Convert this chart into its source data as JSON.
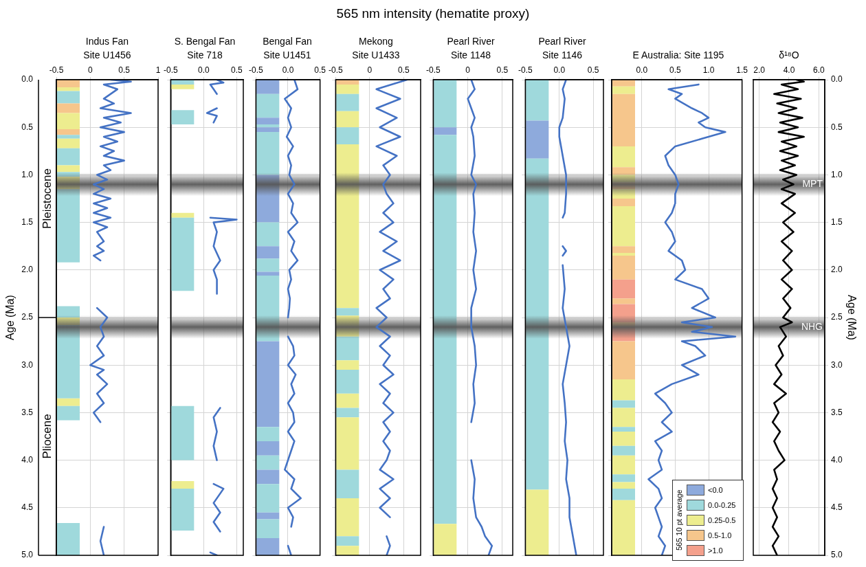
{
  "chart_data": [
    {
      "type": "other",
      "title": "565 nm intensity (hematite proxy)"
    },
    {
      "type": "line",
      "title": "Indus Fan\nSite U1456",
      "ylabel": "Age (Ma)",
      "xlim": [
        -0.5,
        1
      ],
      "xticks": [
        -0.5,
        0,
        0.5,
        1
      ],
      "ylim": [
        5,
        0
      ],
      "yticks": [
        {
          "value": 0,
          "label": "0.0"
        },
        0.5,
        {
          "value": 1,
          "label": "1.0"
        },
        1.5,
        {
          "value": 2,
          "label": "2.0"
        },
        2.5,
        {
          "value": 3,
          "label": "3.0"
        },
        3.5,
        {
          "value": 4,
          "label": "4.0"
        },
        4.5,
        {
          "value": 5,
          "label": "5.0"
        }
      ],
      "grid": true,
      "annotations": [
        "Pleistocene",
        "Pliocene"
      ],
      "series": [
        {
          "type": "line",
          "color": "#4472c4",
          "x": [
            0.3,
            0.6,
            0.2,
            0.4,
            0.2,
            0.35,
            0.15,
            0.6,
            0.2,
            0.45,
            0.15,
            0.5,
            0.2,
            0.4,
            0.15,
            0.35,
            0.2,
            0.5,
            0.2,
            0.3,
            0.1,
            0.25,
            0.05,
            0.2,
            0.05,
            0.3,
            0.05,
            0.25,
            0.05,
            0.3,
            0.05,
            0.25,
            0.1,
            0.2,
            0.1,
            0.2,
            0.05,
            0.15,
            null,
            0.1,
            0.25,
            0.15,
            0.2,
            0.1,
            0.2,
            0.0,
            0.2,
            0.1,
            0.25,
            0.1,
            0.2,
            0.05,
            0.15,
            null,
            0.2,
            0.15,
            0.2
          ],
          "values": [
            0,
            0.02,
            0.05,
            0.1,
            0.2,
            0.25,
            0.3,
            0.35,
            0.4,
            0.45,
            0.5,
            0.55,
            0.6,
            0.65,
            0.7,
            0.75,
            0.8,
            0.85,
            0.9,
            0.95,
            1.0,
            1.05,
            1.1,
            1.15,
            1.2,
            1.25,
            1.3,
            1.35,
            1.4,
            1.45,
            1.5,
            1.55,
            1.6,
            1.7,
            1.75,
            1.8,
            1.85,
            1.9,
            null,
            2.4,
            2.5,
            2.6,
            2.7,
            2.8,
            2.9,
            3.0,
            3.05,
            3.1,
            3.2,
            3.3,
            3.4,
            3.5,
            3.6,
            null,
            4.7,
            4.85,
            5.0
          ]
        }
      ],
      "bands": [
        {
          "axis": "y",
          "from": 0,
          "to": 0.08,
          "color": "#f6c68c"
        },
        {
          "axis": "y",
          "from": 0.08,
          "to": 0.12,
          "color": "#eded8f"
        },
        {
          "axis": "y",
          "from": 0.12,
          "to": 0.25,
          "color": "#9fd9dc"
        },
        {
          "axis": "y",
          "from": 0.25,
          "to": 0.35,
          "color": "#f6c68c"
        },
        {
          "axis": "y",
          "from": 0.35,
          "to": 0.52,
          "color": "#eded8f"
        },
        {
          "axis": "y",
          "from": 0.52,
          "to": 0.58,
          "color": "#f6c68c"
        },
        {
          "axis": "y",
          "from": 0.58,
          "to": 0.62,
          "color": "#9fd9dc"
        },
        {
          "axis": "y",
          "from": 0.62,
          "to": 0.72,
          "color": "#eded8f"
        },
        {
          "axis": "y",
          "from": 0.72,
          "to": 0.9,
          "color": "#9fd9dc"
        },
        {
          "axis": "y",
          "from": 0.9,
          "to": 0.97,
          "color": "#eded8f"
        },
        {
          "axis": "y",
          "from": 0.97,
          "to": 1.02,
          "color": "#9fd9dc"
        },
        {
          "axis": "y",
          "from": 1.02,
          "to": 1.15,
          "color": "#eded8f"
        },
        {
          "axis": "y",
          "from": 1.15,
          "to": 1.92,
          "color": "#9fd9dc"
        },
        {
          "axis": "y",
          "from": 2.38,
          "to": 2.5,
          "color": "#9fd9dc"
        },
        {
          "axis": "y",
          "from": 2.5,
          "to": 2.58,
          "color": "#eded8f"
        },
        {
          "axis": "y",
          "from": 2.58,
          "to": 3.35,
          "color": "#9fd9dc"
        },
        {
          "axis": "y",
          "from": 3.35,
          "to": 3.43,
          "color": "#eded8f"
        },
        {
          "axis": "y",
          "from": 3.43,
          "to": 3.58,
          "color": "#9fd9dc"
        },
        {
          "axis": "y",
          "from": 4.66,
          "to": 5.0,
          "color": "#9fd9dc"
        }
      ],
      "ref_lines": [
        {
          "axis": "y",
          "value": 1.1,
          "color": "#555555"
        },
        {
          "axis": "y",
          "value": 2.6,
          "color": "#555555"
        }
      ]
    },
    {
      "type": "line",
      "title": "S. Bengal Fan\nSite 718",
      "tick_labels": "x",
      "xlim": [
        -0.5,
        0.6
      ],
      "xticks": [
        -0.5,
        {
          "value": 0,
          "label": "0.0"
        },
        0.5
      ],
      "ylim": [
        5,
        0
      ],
      "yticks": [
        0,
        0.5,
        1,
        1.5,
        2,
        2.5,
        3,
        3.5,
        4,
        4.5,
        5
      ],
      "grid": true,
      "series": [
        {
          "type": "line",
          "color": "#4472c4",
          "x": [
            0.2,
            0.3,
            0.1,
            0.15,
            0.2,
            null,
            0.2,
            0.05,
            0.2,
            0.15,
            null,
            0.1,
            0.5,
            0.15,
            0.2,
            0.15,
            0.25,
            0.15,
            0.2,
            0.2,
            null,
            0.25,
            0.15,
            0.2,
            0.15,
            0.2,
            null,
            0.15,
            0.3,
            0.15,
            0.25,
            0.15,
            0.25,
            null,
            0.1,
            0.2
          ],
          "values": [
            0,
            0.03,
            0.05,
            0.1,
            0.15,
            null,
            0.3,
            0.35,
            0.38,
            0.45,
            null,
            1.45,
            1.47,
            1.5,
            1.6,
            1.75,
            1.9,
            2.0,
            2.1,
            2.25,
            null,
            3.45,
            3.55,
            3.7,
            3.85,
            4.0,
            null,
            4.25,
            4.3,
            4.45,
            4.55,
            4.65,
            4.75,
            null,
            4.97,
            5.0
          ]
        }
      ],
      "bands": [
        {
          "axis": "y",
          "from": 0,
          "to": 0.05,
          "color": "#9fd9dc"
        },
        {
          "axis": "y",
          "from": 0.05,
          "to": 0.1,
          "color": "#eded8f"
        },
        {
          "axis": "y",
          "from": 0.32,
          "to": 0.47,
          "color": "#9fd9dc"
        },
        {
          "axis": "y",
          "from": 1.4,
          "to": 1.45,
          "color": "#eded8f"
        },
        {
          "axis": "y",
          "from": 1.45,
          "to": 2.22,
          "color": "#9fd9dc"
        },
        {
          "axis": "y",
          "from": 3.43,
          "to": 4.0,
          "color": "#9fd9dc"
        },
        {
          "axis": "y",
          "from": 4.22,
          "to": 4.3,
          "color": "#eded8f"
        },
        {
          "axis": "y",
          "from": 4.3,
          "to": 4.74,
          "color": "#9fd9dc"
        }
      ],
      "ref_lines": [
        {
          "axis": "y",
          "value": 1.1,
          "color": "#555555"
        },
        {
          "axis": "y",
          "value": 2.6,
          "color": "#555555"
        }
      ]
    },
    {
      "type": "line",
      "title": "Bengal Fan\nSite U1451",
      "tick_labels": "x",
      "xlim": [
        -0.5,
        0.5
      ],
      "xticks": [
        -0.5,
        {
          "value": 0,
          "label": "0.0"
        },
        0.5
      ],
      "ylim": [
        5,
        0
      ],
      "yticks": [
        0,
        0.5,
        1,
        1.5,
        2,
        2.5,
        3,
        3.5,
        4,
        4.5,
        5
      ],
      "grid": true,
      "series": [
        {
          "type": "line",
          "color": "#4472c4",
          "x": [
            0.1,
            0.15,
            -0.05,
            0.05,
            0.0,
            0.05,
            -0.02,
            0.08,
            0.0,
            0.05,
            0.02,
            0.1,
            0.0,
            0.08,
            0.05,
            0.15,
            0.0,
            0.1,
            0.05,
            0.15,
            0.02,
            0.05,
            0.0,
            0.03,
            0.02,
            0.0,
            null,
            0.0,
            0.08,
            0.1,
            0.0,
            0.12,
            0.05,
            0.1,
            0.0,
            0.08,
            0.1,
            0.0,
            0.1,
            0.05,
            0.0,
            -0.05,
            0.1,
            0.05,
            0.2,
            0.0,
            0.08,
            0.05,
            null,
            0.0,
            0.05
          ],
          "values": [
            0,
            0.1,
            0.2,
            0.3,
            0.4,
            0.5,
            0.6,
            0.7,
            0.8,
            0.9,
            1.0,
            1.1,
            1.2,
            1.3,
            1.4,
            1.5,
            1.6,
            1.7,
            1.8,
            1.9,
            2.0,
            2.1,
            2.2,
            2.3,
            2.4,
            2.5,
            null,
            2.7,
            2.8,
            2.9,
            3.0,
            3.1,
            3.2,
            3.3,
            3.4,
            3.5,
            3.6,
            3.7,
            3.8,
            3.9,
            4.0,
            4.1,
            4.2,
            4.3,
            4.4,
            4.5,
            4.6,
            4.7,
            null,
            4.9,
            5.0
          ]
        }
      ],
      "bands": [
        {
          "axis": "y",
          "from": 0,
          "to": 0.15,
          "color": "#8eaadc"
        },
        {
          "axis": "y",
          "from": 0.15,
          "to": 0.4,
          "color": "#9fd9dc"
        },
        {
          "axis": "y",
          "from": 0.4,
          "to": 0.47,
          "color": "#8eaadc"
        },
        {
          "axis": "y",
          "from": 0.47,
          "to": 0.5,
          "color": "#9fd9dc"
        },
        {
          "axis": "y",
          "from": 0.5,
          "to": 0.55,
          "color": "#8eaadc"
        },
        {
          "axis": "y",
          "from": 0.55,
          "to": 1.0,
          "color": "#9fd9dc"
        },
        {
          "axis": "y",
          "from": 1.0,
          "to": 1.5,
          "color": "#8eaadc"
        },
        {
          "axis": "y",
          "from": 1.5,
          "to": 1.75,
          "color": "#9fd9dc"
        },
        {
          "axis": "y",
          "from": 1.75,
          "to": 1.88,
          "color": "#8eaadc"
        },
        {
          "axis": "y",
          "from": 1.88,
          "to": 2.02,
          "color": "#9fd9dc"
        },
        {
          "axis": "y",
          "from": 2.02,
          "to": 2.06,
          "color": "#8eaadc"
        },
        {
          "axis": "y",
          "from": 2.06,
          "to": 2.75,
          "color": "#9fd9dc"
        },
        {
          "axis": "y",
          "from": 2.75,
          "to": 3.65,
          "color": "#8eaadc"
        },
        {
          "axis": "y",
          "from": 3.65,
          "to": 3.8,
          "color": "#9fd9dc"
        },
        {
          "axis": "y",
          "from": 3.8,
          "to": 3.95,
          "color": "#8eaadc"
        },
        {
          "axis": "y",
          "from": 3.95,
          "to": 4.1,
          "color": "#9fd9dc"
        },
        {
          "axis": "y",
          "from": 4.1,
          "to": 4.25,
          "color": "#8eaadc"
        },
        {
          "axis": "y",
          "from": 4.25,
          "to": 4.55,
          "color": "#9fd9dc"
        },
        {
          "axis": "y",
          "from": 4.55,
          "to": 4.62,
          "color": "#8eaadc"
        },
        {
          "axis": "y",
          "from": 4.62,
          "to": 4.82,
          "color": "#9fd9dc"
        },
        {
          "axis": "y",
          "from": 4.82,
          "to": 5.0,
          "color": "#8eaadc"
        }
      ],
      "ref_lines": [
        {
          "axis": "y",
          "value": 1.1,
          "color": "#555555"
        },
        {
          "axis": "y",
          "value": 2.6,
          "color": "#555555"
        }
      ]
    },
    {
      "type": "line",
      "title": "Mekong\nSite U1433",
      "tick_labels": "x",
      "xlim": [
        -0.5,
        0.75
      ],
      "xticks": [
        -0.5,
        0,
        0.5
      ],
      "ylim": [
        5,
        0
      ],
      "yticks": [
        0,
        0.5,
        1,
        1.5,
        2,
        2.5,
        3,
        3.5,
        4,
        4.5,
        5
      ],
      "grid": true,
      "series": [
        {
          "type": "line",
          "color": "#4472c4",
          "x": [
            0.55,
            0.1,
            0.45,
            0.1,
            0.4,
            0.15,
            0.45,
            0.1,
            0.4,
            0.2,
            0.3,
            0.2,
            0.25,
            0.35,
            0.2,
            0.35,
            0.15,
            0.4,
            0.2,
            0.45,
            0.15,
            0.35,
            0.2,
            0.3,
            0.1,
            0.25,
            0.1,
            0.3,
            0.15,
            0.3,
            0.2,
            0.35,
            0.15,
            0.3,
            0.2,
            0.35,
            0.2,
            0.3,
            0.2,
            0.3,
            0.25,
            0.15,
            0.35,
            0.15,
            0.3,
            0.15,
            0.3,
            null,
            0.25,
            0.3,
            0.25
          ],
          "values": [
            0,
            0.1,
            0.2,
            0.3,
            0.4,
            0.5,
            0.6,
            0.7,
            0.8,
            0.9,
            1.0,
            1.1,
            1.2,
            1.3,
            1.4,
            1.5,
            1.6,
            1.7,
            1.8,
            1.9,
            2.0,
            2.1,
            2.2,
            2.3,
            2.4,
            2.5,
            2.6,
            2.7,
            2.8,
            2.9,
            3.0,
            3.1,
            3.2,
            3.3,
            3.4,
            3.5,
            3.6,
            3.7,
            3.8,
            3.9,
            4.0,
            4.1,
            4.2,
            4.3,
            4.4,
            4.5,
            4.6,
            null,
            4.8,
            4.9,
            5.0
          ]
        }
      ],
      "bands": [
        {
          "axis": "y",
          "from": 0,
          "to": 0.05,
          "color": "#f6c68c"
        },
        {
          "axis": "y",
          "from": 0.05,
          "to": 0.15,
          "color": "#eded8f"
        },
        {
          "axis": "y",
          "from": 0.15,
          "to": 0.33,
          "color": "#9fd9dc"
        },
        {
          "axis": "y",
          "from": 0.33,
          "to": 0.5,
          "color": "#eded8f"
        },
        {
          "axis": "y",
          "from": 0.5,
          "to": 0.68,
          "color": "#9fd9dc"
        },
        {
          "axis": "y",
          "from": 0.68,
          "to": 2.4,
          "color": "#eded8f"
        },
        {
          "axis": "y",
          "from": 2.4,
          "to": 2.48,
          "color": "#9fd9dc"
        },
        {
          "axis": "y",
          "from": 2.48,
          "to": 2.7,
          "color": "#eded8f"
        },
        {
          "axis": "y",
          "from": 2.7,
          "to": 2.95,
          "color": "#9fd9dc"
        },
        {
          "axis": "y",
          "from": 2.95,
          "to": 3.05,
          "color": "#eded8f"
        },
        {
          "axis": "y",
          "from": 3.05,
          "to": 3.3,
          "color": "#9fd9dc"
        },
        {
          "axis": "y",
          "from": 3.3,
          "to": 3.45,
          "color": "#eded8f"
        },
        {
          "axis": "y",
          "from": 3.45,
          "to": 3.55,
          "color": "#9fd9dc"
        },
        {
          "axis": "y",
          "from": 3.55,
          "to": 4.1,
          "color": "#eded8f"
        },
        {
          "axis": "y",
          "from": 4.1,
          "to": 4.4,
          "color": "#9fd9dc"
        },
        {
          "axis": "y",
          "from": 4.4,
          "to": 4.8,
          "color": "#eded8f"
        },
        {
          "axis": "y",
          "from": 4.8,
          "to": 4.9,
          "color": "#9fd9dc"
        },
        {
          "axis": "y",
          "from": 4.9,
          "to": 5.0,
          "color": "#eded8f"
        }
      ],
      "ref_lines": [
        {
          "axis": "y",
          "value": 1.1,
          "color": "#555555"
        },
        {
          "axis": "y",
          "value": 2.6,
          "color": "#555555"
        }
      ]
    },
    {
      "type": "line",
      "title": "Pearl River\nSite 1148",
      "tick_labels": "x",
      "xlim": [
        -0.5,
        0.65
      ],
      "xticks": [
        -0.5,
        0,
        0.5
      ],
      "ylim": [
        5,
        0
      ],
      "yticks": [
        0,
        0.5,
        1,
        1.5,
        2,
        2.5,
        3,
        3.5,
        4,
        4.5,
        5
      ],
      "grid": true,
      "series": [
        {
          "type": "line",
          "color": "#4472c4",
          "x": [
            0.05,
            0.1,
            0.0,
            0.05,
            0.1,
            0.05,
            0.08,
            0.1,
            0.05,
            0.12,
            0.08,
            0.1,
            0.08,
            0.12,
            0.08,
            0.12,
            0.05,
            0.05,
            0.1,
            0.12,
            0.08,
            0.1,
            0.05,
            null,
            0.05,
            0.1,
            0.08,
            0.12,
            0.2,
            0.25,
            0.35,
            0.3
          ],
          "values": [
            0,
            0.1,
            0.2,
            0.3,
            0.4,
            0.5,
            0.6,
            0.8,
            1.0,
            1.1,
            1.2,
            1.4,
            1.6,
            1.8,
            2.0,
            2.2,
            2.4,
            2.6,
            2.8,
            3.0,
            3.2,
            3.4,
            3.6,
            null,
            4.0,
            4.2,
            4.4,
            4.6,
            4.7,
            4.8,
            4.9,
            5.0
          ]
        }
      ],
      "bands": [
        {
          "axis": "y",
          "from": 0,
          "to": 0.5,
          "color": "#9fd9dc"
        },
        {
          "axis": "y",
          "from": 0.5,
          "to": 0.58,
          "color": "#8eaadc"
        },
        {
          "axis": "y",
          "from": 0.58,
          "to": 4.67,
          "color": "#9fd9dc"
        },
        {
          "axis": "y",
          "from": 4.67,
          "to": 5.0,
          "color": "#eded8f"
        }
      ],
      "ref_lines": [
        {
          "axis": "y",
          "value": 1.1,
          "color": "#555555"
        },
        {
          "axis": "y",
          "value": 2.6,
          "color": "#555555"
        }
      ]
    },
    {
      "type": "line",
      "title": "Pearl River\nSite 1146",
      "tick_labels": "x",
      "xlim": [
        -0.5,
        0.65
      ],
      "xticks": [
        -0.5,
        {
          "value": 0,
          "label": "0.0"
        },
        0.5
      ],
      "ylim": [
        5,
        0
      ],
      "yticks": [
        0,
        0.5,
        1,
        1.5,
        2,
        2.5,
        3,
        3.5,
        4,
        4.5,
        5
      ],
      "grid": true,
      "series": [
        {
          "type": "line",
          "color": "#4472c4",
          "x": [
            0.1,
            0.05,
            0.08,
            0.05,
            0.0,
            0.0,
            0.05,
            0.1,
            0.1,
            0.08,
            0.05,
            null,
            0.05,
            0.1,
            0.05,
            null,
            0.05,
            0.08,
            0.05,
            0.1,
            0.15,
            0.1,
            0.05,
            0.08,
            0.1,
            0.08,
            0.12,
            0.1,
            0.15,
            0.15,
            0.2,
            0.25
          ],
          "values": [
            0,
            0.1,
            0.2,
            0.4,
            0.5,
            0.6,
            0.8,
            1.0,
            1.2,
            1.4,
            1.45,
            null,
            1.75,
            1.8,
            1.85,
            null,
            1.95,
            2.2,
            2.4,
            2.6,
            2.8,
            3.0,
            3.2,
            3.4,
            3.6,
            3.8,
            4.0,
            4.2,
            4.4,
            4.6,
            4.8,
            5.0
          ]
        }
      ],
      "bands": [
        {
          "axis": "y",
          "from": 0,
          "to": 0.43,
          "color": "#9fd9dc"
        },
        {
          "axis": "y",
          "from": 0.43,
          "to": 0.83,
          "color": "#8eaadc"
        },
        {
          "axis": "y",
          "from": 0.83,
          "to": 4.31,
          "color": "#9fd9dc"
        },
        {
          "axis": "y",
          "from": 4.31,
          "to": 5.0,
          "color": "#eded8f"
        }
      ],
      "ref_lines": [
        {
          "axis": "y",
          "value": 1.1,
          "color": "#555555"
        },
        {
          "axis": "y",
          "value": 2.6,
          "color": "#555555"
        }
      ]
    },
    {
      "type": "line",
      "title": "E Australia: Site 1195",
      "tick_labels": "x",
      "xlim": [
        -0.45,
        1.5
      ],
      "xticks": [
        {
          "value": 0,
          "label": "0.0"
        },
        0.5,
        {
          "value": 1,
          "label": "1.0"
        },
        1.5
      ],
      "ylim": [
        5,
        0
      ],
      "yticks": [
        0,
        0.5,
        1,
        1.5,
        2,
        2.5,
        3,
        3.5,
        4,
        4.5,
        5
      ],
      "grid": true,
      "series": [
        {
          "type": "line",
          "color": "#4472c4",
          "x": [
            0.85,
            0.4,
            0.6,
            0.5,
            0.75,
            0.9,
            1.0,
            0.85,
            0.95,
            1.25,
            0.9,
            0.5,
            0.35,
            0.4,
            0.5,
            0.55,
            0.5,
            0.5,
            0.45,
            0.35,
            0.45,
            0.5,
            0.4,
            0.6,
            0.65,
            0.5,
            0.9,
            1.0,
            0.75,
            1.1,
            0.6,
            1.05,
            0.75,
            1.4,
            0.6,
            0.8,
            0.95,
            0.6,
            0.85,
            0.45,
            0.2,
            0.35,
            0.45,
            0.3,
            0.45,
            0.2,
            0.3,
            0.25,
            0.3,
            0.1,
            0.25,
            0.3,
            0.2,
            0.25,
            0.3,
            0.25,
            0.35,
            0.3
          ],
          "values": [
            0.05,
            0.1,
            0.15,
            0.2,
            0.3,
            0.35,
            0.4,
            0.45,
            0.5,
            0.55,
            0.62,
            0.7,
            0.8,
            0.9,
            1.0,
            1.1,
            1.2,
            1.3,
            1.4,
            1.5,
            1.6,
            1.7,
            1.8,
            1.9,
            2.0,
            2.1,
            2.2,
            2.3,
            2.4,
            2.5,
            2.55,
            2.6,
            2.65,
            2.7,
            2.75,
            2.8,
            2.9,
            3.0,
            3.1,
            3.2,
            3.3,
            3.4,
            3.5,
            3.6,
            3.7,
            3.8,
            3.9,
            4.0,
            4.1,
            4.2,
            4.3,
            4.4,
            4.5,
            4.6,
            4.7,
            4.8,
            4.9,
            5.0
          ]
        }
      ],
      "bands": [
        {
          "axis": "y",
          "from": 0,
          "to": 0.07,
          "color": "#f6c68c"
        },
        {
          "axis": "y",
          "from": 0.07,
          "to": 0.15,
          "color": "#eded8f"
        },
        {
          "axis": "y",
          "from": 0.15,
          "to": 0.7,
          "color": "#f6c68c"
        },
        {
          "axis": "y",
          "from": 0.7,
          "to": 0.92,
          "color": "#eded8f"
        },
        {
          "axis": "y",
          "from": 0.92,
          "to": 1.0,
          "color": "#f6c68c"
        },
        {
          "axis": "y",
          "from": 1.0,
          "to": 1.08,
          "color": "#eded8f"
        },
        {
          "axis": "y",
          "from": 1.08,
          "to": 1.15,
          "color": "#f6c68c"
        },
        {
          "axis": "y",
          "from": 1.15,
          "to": 1.25,
          "color": "#eded8f"
        },
        {
          "axis": "y",
          "from": 1.25,
          "to": 1.33,
          "color": "#f6c68c"
        },
        {
          "axis": "y",
          "from": 1.33,
          "to": 1.75,
          "color": "#eded8f"
        },
        {
          "axis": "y",
          "from": 1.75,
          "to": 1.82,
          "color": "#f6c68c"
        },
        {
          "axis": "y",
          "from": 1.82,
          "to": 1.85,
          "color": "#eded8f"
        },
        {
          "axis": "y",
          "from": 1.85,
          "to": 2.1,
          "color": "#f6c68c"
        },
        {
          "axis": "y",
          "from": 2.1,
          "to": 2.3,
          "color": "#f4a08c"
        },
        {
          "axis": "y",
          "from": 2.3,
          "to": 2.36,
          "color": "#f6c68c"
        },
        {
          "axis": "y",
          "from": 2.36,
          "to": 2.55,
          "color": "#f4a08c"
        },
        {
          "axis": "y",
          "from": 2.55,
          "to": 2.6,
          "color": "#f6c68c"
        },
        {
          "axis": "y",
          "from": 2.6,
          "to": 2.75,
          "color": "#f4a08c"
        },
        {
          "axis": "y",
          "from": 2.75,
          "to": 3.15,
          "color": "#f6c68c"
        },
        {
          "axis": "y",
          "from": 3.15,
          "to": 3.37,
          "color": "#eded8f"
        },
        {
          "axis": "y",
          "from": 3.37,
          "to": 3.45,
          "color": "#9fd9dc"
        },
        {
          "axis": "y",
          "from": 3.45,
          "to": 3.65,
          "color": "#eded8f"
        },
        {
          "axis": "y",
          "from": 3.65,
          "to": 3.7,
          "color": "#9fd9dc"
        },
        {
          "axis": "y",
          "from": 3.7,
          "to": 3.85,
          "color": "#eded8f"
        },
        {
          "axis": "y",
          "from": 3.85,
          "to": 3.95,
          "color": "#9fd9dc"
        },
        {
          "axis": "y",
          "from": 3.95,
          "to": 4.15,
          "color": "#eded8f"
        },
        {
          "axis": "y",
          "from": 4.15,
          "to": 4.23,
          "color": "#9fd9dc"
        },
        {
          "axis": "y",
          "from": 4.23,
          "to": 4.3,
          "color": "#eded8f"
        },
        {
          "axis": "y",
          "from": 4.3,
          "to": 4.42,
          "color": "#9fd9dc"
        },
        {
          "axis": "y",
          "from": 4.42,
          "to": 5.0,
          "color": "#eded8f"
        }
      ],
      "ref_lines": [
        {
          "axis": "y",
          "value": 1.1,
          "color": "#555555"
        },
        {
          "axis": "y",
          "value": 2.6,
          "color": "#555555"
        }
      ]
    },
    {
      "type": "line",
      "title": "δ¹⁸O",
      "y2label": "Age (Ma)",
      "xlim": [
        1.6,
        6.4
      ],
      "xticks": [
        {
          "value": 2,
          "label": "2.0"
        },
        {
          "value": 4,
          "label": "4.0"
        },
        {
          "value": 6,
          "label": "6.0"
        }
      ],
      "y2lim": [
        5,
        0
      ],
      "y2ticks": [
        {
          "value": 0,
          "label": "0.0"
        },
        0.5,
        {
          "value": 1,
          "label": "1.0"
        },
        1.5,
        {
          "value": 2,
          "label": "2.0"
        },
        2.5,
        {
          "value": 3,
          "label": "3.0"
        },
        3.5,
        {
          "value": 4,
          "label": "4.0"
        },
        4.5,
        {
          "value": 5,
          "label": "5.0"
        }
      ],
      "grid": true,
      "series": [
        {
          "type": "line",
          "axis": "y2",
          "color": "#000000",
          "x": [
            4.5,
            5.0,
            3.5,
            4.6,
            3.0,
            4.8,
            3.2,
            4.5,
            3.3,
            4.9,
            3.4,
            4.6,
            3.3,
            5.0,
            3.5,
            4.5,
            3.4,
            4.6,
            3.5,
            4.4,
            3.4,
            4.5,
            3.6,
            4.3,
            3.5,
            4.4,
            3.5,
            4.4,
            3.6,
            4.3,
            3.5,
            4.2,
            3.6,
            4.2,
            3.5,
            4.2,
            3.6,
            4.1,
            3.6,
            4.2,
            3.4,
            3.8,
            3.3,
            3.6,
            3.1,
            3.5,
            3.0,
            3.8,
            3.0,
            3.3,
            2.9,
            3.4,
            3.0,
            3.3,
            3.7,
            3.0,
            3.2,
            2.9,
            3.2,
            2.9,
            3.2,
            2.9,
            3.3,
            2.9,
            3.2
          ],
          "values": [
            0,
            0.02,
            0.05,
            0.1,
            0.15,
            0.2,
            0.25,
            0.3,
            0.35,
            0.4,
            0.45,
            0.5,
            0.55,
            0.6,
            0.65,
            0.7,
            0.75,
            0.8,
            0.85,
            0.9,
            0.95,
            1.0,
            1.05,
            1.1,
            1.15,
            1.2,
            1.3,
            1.4,
            1.5,
            1.6,
            1.7,
            1.8,
            1.9,
            2.0,
            2.1,
            2.2,
            2.3,
            2.4,
            2.5,
            2.55,
            2.6,
            2.7,
            2.8,
            2.9,
            3.0,
            3.1,
            3.2,
            3.3,
            3.4,
            3.5,
            3.6,
            3.7,
            3.8,
            3.9,
            4.0,
            4.1,
            4.2,
            4.3,
            4.4,
            4.5,
            4.6,
            4.7,
            4.8,
            4.9,
            5.0
          ]
        }
      ],
      "ref_lines": [
        {
          "axis": "y2",
          "value": 1.1,
          "label": "MPT",
          "color": "#555555"
        },
        {
          "axis": "y2",
          "value": 2.6,
          "label": "NHG",
          "color": "#555555"
        }
      ]
    },
    {
      "type": "other",
      "legend_title": "565 10 pt average",
      "categories": [
        "<0.0",
        "0.0-0.25",
        "0.25-0.5",
        "0.5-1.0",
        ">1.0"
      ],
      "colors": [
        "#8eaadc",
        "#9fd9dc",
        "#eded8f",
        "#f6c68c",
        "#f4a08c"
      ]
    }
  ]
}
